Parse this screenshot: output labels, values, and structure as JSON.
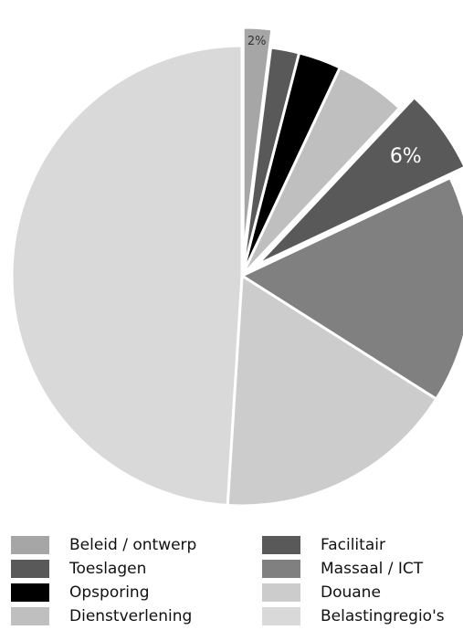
{
  "chart_data": {
    "type": "pie",
    "categories": [
      "Beleid / ontwerp",
      "Toeslagen",
      "Opsporing",
      "Dienstverlening",
      "Facilitair",
      "Massaal / ICT",
      "Douane",
      "Belastingregio's"
    ],
    "values": [
      2,
      2,
      3,
      5,
      6,
      16,
      17,
      49
    ],
    "slice_colors": [
      "#a6a6a6",
      "#595959",
      "#000000",
      "#bfbfbf",
      "#595959",
      "#808080",
      "#cccccc",
      "#d9d9d9"
    ],
    "exploded": [
      true,
      false,
      false,
      false,
      true,
      false,
      false,
      false
    ],
    "data_labels": [
      "2%",
      "",
      "",
      "",
      "6%",
      "",
      "",
      ""
    ],
    "data_label_colors": [
      "#333333",
      "",
      "",
      "",
      "#ffffff",
      "",
      "",
      ""
    ],
    "legend": {
      "position": "bottom",
      "items": [
        {
          "label": "Beleid / ontwerp",
          "color": "#a6a6a6"
        },
        {
          "label": "Toeslagen",
          "color": "#595959"
        },
        {
          "label": "Opsporing",
          "color": "#000000"
        },
        {
          "label": "Dienstverlening",
          "color": "#bfbfbf"
        },
        {
          "label": "Facilitair",
          "color": "#595959"
        },
        {
          "label": "Massaal / ICT",
          "color": "#808080"
        },
        {
          "label": "Douane",
          "color": "#cccccc"
        },
        {
          "label": "Belastingregio's",
          "color": "#d9d9d9"
        }
      ]
    }
  }
}
